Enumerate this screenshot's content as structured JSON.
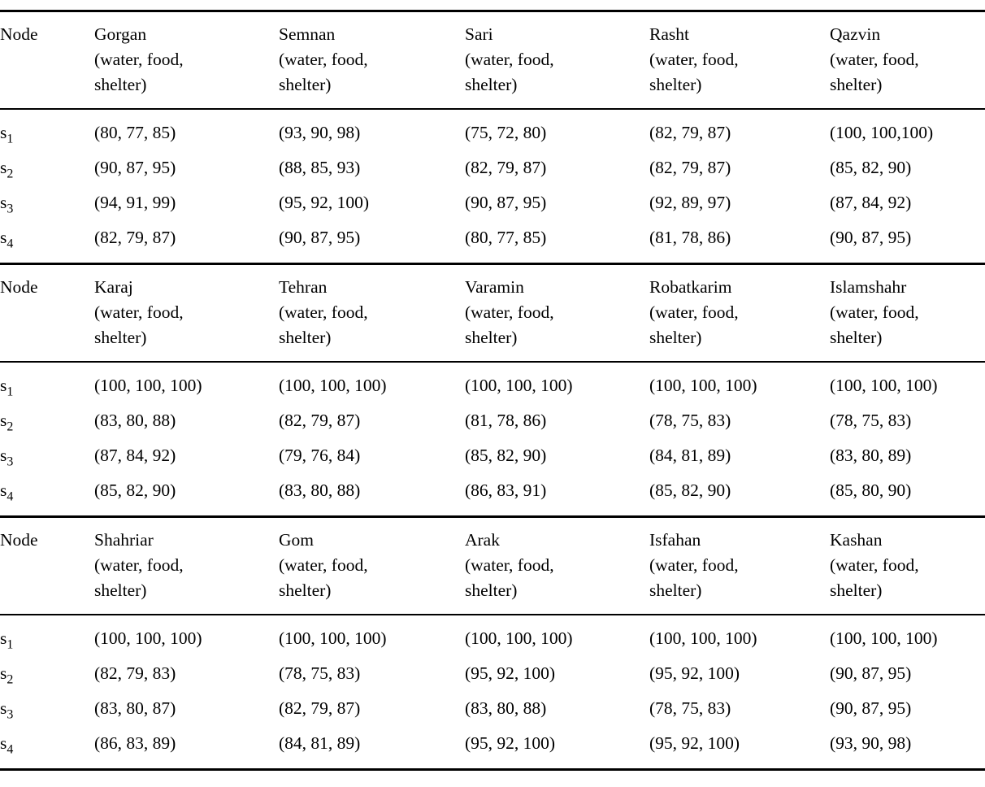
{
  "page": {
    "background_color": "#ffffff",
    "text_color": "#000000"
  },
  "table": {
    "node_header": "Node",
    "criteria_lines": [
      "(water, food,",
      "shelter)"
    ],
    "row_label": "s",
    "sections": [
      {
        "cities": [
          "Gorgan",
          "Semnan",
          "Sari",
          "Rasht",
          "Qazvin"
        ],
        "rows": [
          {
            "label": "s",
            "subscript": "1",
            "values": [
              "(80, 77, 85)",
              "(93, 90, 98)",
              "(75, 72, 80)",
              "(82, 79, 87)",
              "(100, 100,100)"
            ]
          },
          {
            "label": "s",
            "subscript": "2",
            "values": [
              "(90, 87, 95)",
              "(88, 85, 93)",
              "(82, 79, 87)",
              "(82, 79, 87)",
              "(85, 82, 90)"
            ]
          },
          {
            "label": "s",
            "subscript": "3",
            "values": [
              "(94, 91, 99)",
              "(95, 92, 100)",
              "(90, 87, 95)",
              "(92, 89, 97)",
              "(87, 84, 92)"
            ]
          },
          {
            "label": "s",
            "subscript": "4",
            "values": [
              "(82, 79, 87)",
              "(90, 87, 95)",
              "(80, 77, 85)",
              "(81, 78, 86)",
              "(90, 87, 95)"
            ]
          }
        ]
      },
      {
        "cities": [
          "Karaj",
          "Tehran",
          "Varamin",
          "Robatkarim",
          "Islamshahr"
        ],
        "rows": [
          {
            "label": "s",
            "subscript": "1",
            "values": [
              "(100, 100, 100)",
              "(100, 100, 100)",
              "(100, 100, 100)",
              "(100, 100, 100)",
              "(100, 100, 100)"
            ]
          },
          {
            "label": "s",
            "subscript": "2",
            "values": [
              "(83, 80, 88)",
              "(82, 79, 87)",
              "(81, 78, 86)",
              "(78, 75, 83)",
              "(78, 75, 83)"
            ]
          },
          {
            "label": "s",
            "subscript": "3",
            "values": [
              "(87, 84, 92)",
              "(79, 76, 84)",
              "(85, 82, 90)",
              "(84, 81, 89)",
              "(83, 80, 89)"
            ]
          },
          {
            "label": "s",
            "subscript": "4",
            "values": [
              "(85, 82, 90)",
              "(83, 80, 88)",
              "(86, 83, 91)",
              "(85, 82, 90)",
              "(85, 80, 90)"
            ]
          }
        ]
      },
      {
        "cities": [
          "Shahriar",
          "Gom",
          "Arak",
          "Isfahan",
          "Kashan"
        ],
        "rows": [
          {
            "label": "s",
            "subscript": "1",
            "values": [
              "(100, 100, 100)",
              "(100, 100, 100)",
              "(100, 100, 100)",
              "(100, 100, 100)",
              "(100, 100, 100)"
            ]
          },
          {
            "label": "s",
            "subscript": "2",
            "values": [
              "(82, 79, 83)",
              "(78, 75, 83)",
              "(95, 92, 100)",
              "(95, 92, 100)",
              "(90, 87, 95)"
            ]
          },
          {
            "label": "s",
            "subscript": "3",
            "values": [
              "(83, 80, 87)",
              "(82, 79, 87)",
              "(83, 80, 88)",
              "(78, 75, 83)",
              "(90, 87, 95)"
            ]
          },
          {
            "label": "s",
            "subscript": "4",
            "values": [
              "(86, 83, 89)",
              "(84, 81, 89)",
              "(95, 92, 100)",
              "(95, 92, 100)",
              "(93, 90, 98)"
            ]
          }
        ]
      }
    ]
  }
}
